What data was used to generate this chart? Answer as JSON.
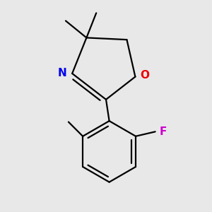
{
  "background_color": "#e8e8e8",
  "bond_color": "#000000",
  "bond_width": 1.6,
  "N_color": "#0000ee",
  "O_color": "#ee0000",
  "F_color": "#cc00cc",
  "figsize": [
    3.0,
    3.0
  ],
  "dpi": 100,
  "xlim": [
    -1.2,
    1.4
  ],
  "ylim": [
    -1.8,
    1.4
  ]
}
